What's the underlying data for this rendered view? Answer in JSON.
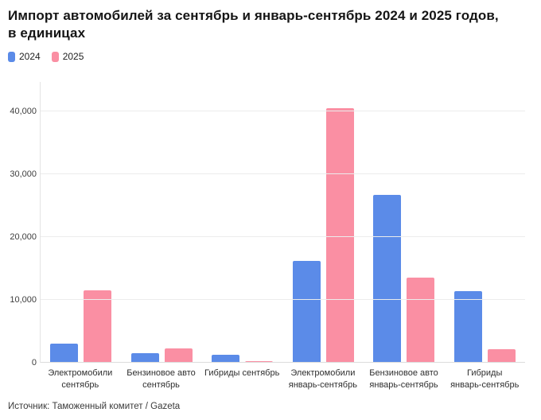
{
  "header": {
    "title_lines": [
      "Импорт автомобилей за сентябрь и январь-сентябрь 2024 и 2025 годов,",
      "в единицах"
    ]
  },
  "legend": {
    "items": [
      {
        "label": "2024",
        "color": "#5b8be8"
      },
      {
        "label": "2025",
        "color": "#fa8fa3"
      }
    ]
  },
  "footer": {
    "source": "Источник: Таможенный комитет / Gazeta"
  },
  "colors": {
    "series_2024": "#5b8be8",
    "series_2025": "#fa8fa3",
    "gridline": "#ececec",
    "axis_text": "#3d3d3d"
  },
  "chart_data": {
    "type": "bar",
    "title": "Импорт автомобилей за сентябрь и январь-сентябрь 2024 и 2025 годов, в единицах",
    "categories": [
      "Электромобили сентябрь",
      "Бензиновое авто сентябрь",
      "Гибриды сентябрь",
      "Электромобили январь-сентябрь",
      "Бензиновое авто январь-сентябрь",
      "Гибриды январь-сентябрь"
    ],
    "category_label_lines": [
      [
        "Электромобили",
        "сентябрь"
      ],
      [
        "Бензиновое авто",
        "сентябрь"
      ],
      [
        "Гибриды сентябрь"
      ],
      [
        "Электромобили",
        "январь-сентябрь"
      ],
      [
        "Бензиновое авто",
        "январь-сентябрь"
      ],
      [
        "Гибриды",
        "январь-сентябрь"
      ]
    ],
    "series": [
      {
        "name": "2024",
        "color": "#5b8be8",
        "values": [
          3100,
          1500,
          1300,
          16200,
          26700,
          11400
        ]
      },
      {
        "name": "2025",
        "color": "#fa8fa3",
        "values": [
          11500,
          2300,
          250,
          40500,
          13600,
          2200
        ]
      }
    ],
    "yticks": [
      0,
      10000,
      20000,
      30000,
      40000
    ],
    "ytick_labels": [
      "0",
      "10,000",
      "20,000",
      "30,000",
      "40,000"
    ],
    "ylim": [
      0,
      44000
    ],
    "xlabel": "",
    "ylabel": "",
    "grid": true,
    "legend_position": "top-left",
    "source": "Источник: Таможенный комитет / Gazeta"
  }
}
